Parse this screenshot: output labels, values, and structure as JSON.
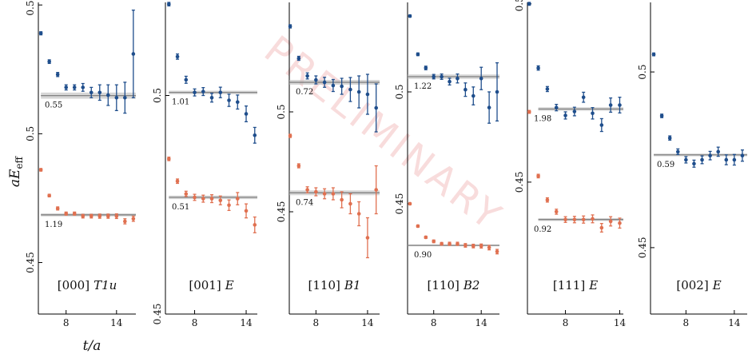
{
  "figure": {
    "y_label": "aE",
    "y_label_sub": "eff",
    "x_label": "t/a",
    "watermark": "PRELIMINARY"
  },
  "chart_data": [
    {
      "type": "scatter",
      "momentum": "[000]",
      "irrep": "T1u",
      "xlim": [
        4.7,
        16.3
      ],
      "ylim": [
        0.43,
        0.551
      ],
      "xticks": [
        8,
        14
      ],
      "yticks": [
        0.45,
        0.5,
        0.55
      ],
      "series": [
        {
          "color": "#1f4e8c",
          "x": [
            5,
            6,
            7,
            8,
            9,
            10,
            11,
            12,
            13,
            14,
            15,
            16
          ],
          "values": [
            0.539,
            0.528,
            0.523,
            0.518,
            0.518,
            0.518,
            0.516,
            0.516,
            0.515,
            0.514,
            0.514,
            0.531
          ],
          "errors": [
            0.0006,
            0.0007,
            0.0008,
            0.001,
            0.001,
            0.0015,
            0.002,
            0.003,
            0.004,
            0.005,
            0.006,
            0.017
          ],
          "fit": {
            "value": 0.5148,
            "error": 0.0012,
            "t_range": [
              5,
              16.3
            ],
            "label": "0.55"
          }
        },
        {
          "color": "#e07050",
          "x": [
            5,
            6,
            7,
            8,
            9,
            10,
            11,
            12,
            13,
            14,
            15,
            16
          ],
          "values": [
            0.486,
            0.476,
            0.471,
            0.469,
            0.469,
            0.468,
            0.468,
            0.468,
            0.468,
            0.468,
            0.466,
            0.467
          ],
          "errors": [
            0.0005,
            0.0005,
            0.0006,
            0.0006,
            0.0006,
            0.0007,
            0.0007,
            0.0008,
            0.0008,
            0.0009,
            0.001,
            0.001
          ],
          "fit": {
            "value": 0.4685,
            "error": 0.0006,
            "t_range": [
              5,
              16.3
            ],
            "label": "1.19"
          }
        }
      ]
    },
    {
      "type": "scatter",
      "momentum": "[001]",
      "irrep": "E",
      "xlim": [
        4.6,
        15.3
      ],
      "ylim": [
        0.45,
        0.5213
      ],
      "xticks": [
        8,
        14
      ],
      "yticks": [
        0.45,
        0.5
      ],
      "series": [
        {
          "color": "#1f4e8c",
          "x": [
            5,
            6,
            7,
            8,
            9,
            10,
            11,
            12,
            13,
            14,
            15
          ],
          "values": [
            0.5209,
            0.5089,
            0.5036,
            0.5007,
            0.5009,
            0.4995,
            0.5007,
            0.4989,
            0.4985,
            0.4958,
            0.4909
          ],
          "errors": [
            0.0004,
            0.0006,
            0.0008,
            0.0008,
            0.0009,
            0.001,
            0.0012,
            0.0014,
            0.0016,
            0.0018,
            0.0018
          ],
          "fit": {
            "value": 0.5007,
            "error": 0.0004,
            "t_range": [
              5,
              15.3
            ],
            "label": "1.01"
          }
        },
        {
          "color": "#e07050",
          "x": [
            5,
            6,
            7,
            8,
            9,
            10,
            11,
            12,
            13,
            14,
            15
          ],
          "values": [
            0.4855,
            0.4804,
            0.4775,
            0.4767,
            0.4764,
            0.4764,
            0.476,
            0.4749,
            0.4764,
            0.4736,
            0.4704
          ],
          "errors": [
            0.0004,
            0.0005,
            0.0006,
            0.0007,
            0.0008,
            0.0009,
            0.001,
            0.0012,
            0.0014,
            0.0016,
            0.0018
          ],
          "fit": {
            "value": 0.4767,
            "error": 0.0004,
            "t_range": [
              5,
              15.3
            ],
            "label": "0.51"
          }
        }
      ]
    },
    {
      "type": "scatter",
      "momentum": "[110]",
      "irrep": "B1",
      "xlim": [
        4.9,
        15.4
      ],
      "ylim": [
        0.3988,
        0.5548
      ],
      "xticks": [
        8,
        14
      ],
      "yticks": [
        0.45,
        0.5
      ],
      "series": [
        {
          "color": "#1f4e8c",
          "x": [
            5,
            6,
            7,
            8,
            9,
            10,
            11,
            12,
            13,
            14,
            15
          ],
          "values": [
            0.5428,
            0.5268,
            0.518,
            0.516,
            0.5148,
            0.5132,
            0.5128,
            0.5112,
            0.51,
            0.5088,
            0.502
          ],
          "errors": [
            0.0008,
            0.001,
            0.0015,
            0.002,
            0.0025,
            0.003,
            0.004,
            0.006,
            0.008,
            0.01,
            0.012
          ],
          "fit": {
            "value": 0.5148,
            "error": 0.0012,
            "t_range": [
              4.9,
              15.4
            ],
            "label": "0.72"
          }
        },
        {
          "color": "#e07050",
          "x": [
            5,
            6,
            7,
            8,
            9,
            10,
            11,
            12,
            13,
            14,
            15
          ],
          "values": [
            0.488,
            0.473,
            0.461,
            0.46,
            0.459,
            0.459,
            0.456,
            0.454,
            0.449,
            0.437,
            0.461
          ],
          "errors": [
            0.0008,
            0.001,
            0.0015,
            0.002,
            0.0025,
            0.003,
            0.004,
            0.005,
            0.006,
            0.01,
            0.012
          ],
          "fit": {
            "value": 0.4595,
            "error": 0.0012,
            "t_range": [
              4.9,
              15.4
            ],
            "label": "0.74"
          }
        }
      ]
    },
    {
      "type": "scatter",
      "momentum": "[110]",
      "irrep": "B2",
      "xlim": [
        4.7,
        16.3
      ],
      "ylim": [
        0.4007,
        0.54
      ],
      "xticks": [
        8,
        14
      ],
      "yticks": [
        0.45,
        0.5
      ],
      "series": [
        {
          "color": "#1f4e8c",
          "x": [
            5,
            6,
            7,
            8,
            9,
            10,
            11,
            12,
            13,
            14,
            15,
            16
          ],
          "values": [
            0.5339,
            0.5168,
            0.5107,
            0.5068,
            0.5068,
            0.5046,
            0.506,
            0.501,
            0.4982,
            0.506,
            0.493,
            0.5
          ],
          "errors": [
            0.0005,
            0.0006,
            0.0008,
            0.001,
            0.0012,
            0.0015,
            0.002,
            0.003,
            0.004,
            0.005,
            0.007,
            0.013
          ],
          "fit": {
            "value": 0.5068,
            "error": 0.001,
            "t_range": [
              4.7,
              16.3
            ],
            "label": "1.22"
          }
        },
        {
          "color": "#e07050",
          "x": [
            5,
            6,
            7,
            8,
            9,
            10,
            11,
            12,
            13,
            14,
            15,
            16
          ],
          "values": [
            0.45,
            0.44,
            0.435,
            0.4332,
            0.4321,
            0.4321,
            0.4321,
            0.4314,
            0.4311,
            0.4311,
            0.4304,
            0.4286
          ],
          "errors": [
            0.0004,
            0.0005,
            0.0005,
            0.0006,
            0.0006,
            0.0007,
            0.0007,
            0.0008,
            0.0008,
            0.0009,
            0.001,
            0.001
          ],
          "fit": {
            "value": 0.4314,
            "error": 0.0004,
            "t_range": [
              4.7,
              16.3
            ],
            "label": "0.90"
          }
        }
      ]
    },
    {
      "type": "scatter",
      "momentum": "[111]",
      "irrep": "E",
      "xlim": [
        3.8,
        14.4
      ],
      "ylim": [
        0.413,
        0.5004
      ],
      "xticks": [
        8,
        14
      ],
      "yticks": [
        0.45,
        0.5
      ],
      "series": [
        {
          "color": "#1f4e8c",
          "x": [
            4,
            5,
            6,
            7,
            8,
            9,
            10,
            11,
            12,
            13,
            14
          ],
          "values": [
            0.5,
            0.482,
            0.4761,
            0.4709,
            0.4687,
            0.4698,
            0.4738,
            0.4693,
            0.466,
            0.4716,
            0.4716
          ],
          "errors": [
            0.0004,
            0.0006,
            0.0007,
            0.0009,
            0.001,
            0.0012,
            0.0014,
            0.0016,
            0.0018,
            0.002,
            0.0022
          ],
          "fit": {
            "value": 0.4705,
            "error": 0.0005,
            "t_range": [
              5,
              14.4
            ],
            "label": "1.98"
          }
        },
        {
          "color": "#e07050",
          "x": [
            4,
            5,
            6,
            7,
            8,
            9,
            10,
            11,
            12,
            13,
            14
          ],
          "values": [
            0.4697,
            0.4517,
            0.445,
            0.4417,
            0.4395,
            0.4395,
            0.4395,
            0.4397,
            0.4372,
            0.439,
            0.4385
          ],
          "errors": [
            0.0004,
            0.0005,
            0.0006,
            0.0007,
            0.0008,
            0.0009,
            0.001,
            0.0011,
            0.0012,
            0.0013,
            0.0014
          ],
          "fit": {
            "value": 0.4395,
            "error": 0.0004,
            "t_range": [
              5,
              14.4
            ],
            "label": "0.92"
          }
        }
      ]
    },
    {
      "type": "scatter",
      "momentum": "[002]",
      "irrep": "E",
      "xlim": [
        3.6,
        15.6
      ],
      "ylim": [
        0.4311,
        0.5198
      ],
      "xticks": [
        8,
        14
      ],
      "yticks": [
        0.45,
        0.5
      ],
      "series": [
        {
          "color": "#1f4e8c",
          "x": [
            4,
            5,
            6,
            7,
            8,
            9,
            10,
            11,
            12,
            13,
            14,
            15
          ],
          "values": [
            0.505,
            0.4875,
            0.4812,
            0.4773,
            0.475,
            0.4739,
            0.475,
            0.4762,
            0.4773,
            0.475,
            0.475,
            0.4762
          ],
          "errors": [
            0.0004,
            0.0005,
            0.0006,
            0.0008,
            0.0009,
            0.001,
            0.0011,
            0.0012,
            0.0013,
            0.0014,
            0.0015,
            0.0016
          ],
          "fit": {
            "value": 0.4764,
            "error": 0.0004,
            "t_range": [
              4,
              15.6
            ],
            "label": "0.59"
          }
        }
      ]
    }
  ]
}
